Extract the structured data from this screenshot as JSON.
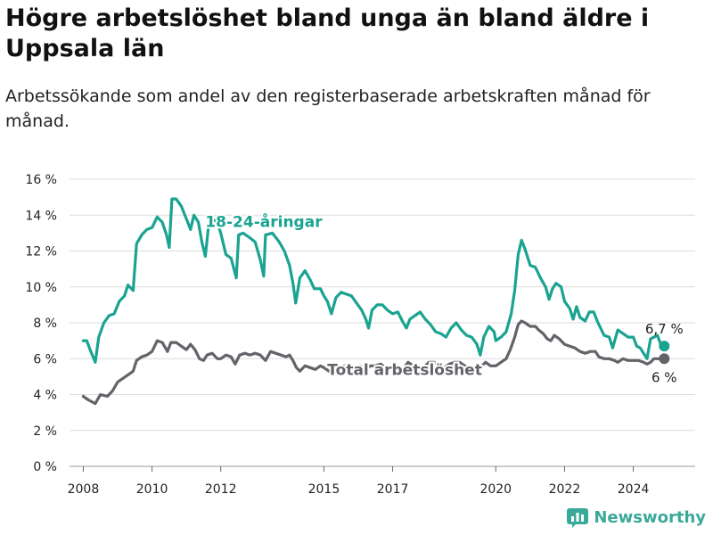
{
  "title": "Högre arbetslöshet bland unga än bland äldre i Uppsala län",
  "subtitle": "Arbetssökande som andel av den registerbaserade arbetskraften månad för månad.",
  "brand": {
    "name": "Newsworthy",
    "color": "#3aa99a"
  },
  "chart_data": {
    "type": "line",
    "title": "Högre arbetslöshet bland unga än bland äldre i Uppsala län",
    "subtitle": "Arbetssökande som andel av den registerbaserade arbetskraften månad för månad.",
    "xlabel": "",
    "ylabel": "",
    "xlim": [
      2007.6,
      2025.8
    ],
    "ylim": [
      0,
      16
    ],
    "grid": true,
    "x_ticks": [
      2008,
      2010,
      2012,
      2015,
      2017,
      2020,
      2022,
      2024
    ],
    "y_ticks": [
      {
        "value": 0,
        "label": "0 %"
      },
      {
        "value": 2,
        "label": "2 %"
      },
      {
        "value": 4,
        "label": "4 %"
      },
      {
        "value": 6,
        "label": "6 %"
      },
      {
        "value": 8,
        "label": "8 %"
      },
      {
        "value": 10,
        "label": "10 %"
      },
      {
        "value": 12,
        "label": "12 %"
      },
      {
        "value": 14,
        "label": "14 %"
      },
      {
        "value": 16,
        "label": "16 %"
      }
    ],
    "series": [
      {
        "name": "18-24-åringar",
        "color": "#1aa391",
        "end_label": "6,7 %",
        "points": [
          [
            2008.0,
            7.0
          ],
          [
            2008.1,
            7.0
          ],
          [
            2008.2,
            6.5
          ],
          [
            2008.35,
            5.8
          ],
          [
            2008.45,
            7.2
          ],
          [
            2008.6,
            8.0
          ],
          [
            2008.75,
            8.4
          ],
          [
            2008.9,
            8.5
          ],
          [
            2009.05,
            9.2
          ],
          [
            2009.2,
            9.5
          ],
          [
            2009.3,
            10.1
          ],
          [
            2009.45,
            9.8
          ],
          [
            2009.55,
            12.4
          ],
          [
            2009.7,
            12.9
          ],
          [
            2009.85,
            13.2
          ],
          [
            2010.0,
            13.3
          ],
          [
            2010.15,
            13.9
          ],
          [
            2010.3,
            13.6
          ],
          [
            2010.42,
            12.9
          ],
          [
            2010.5,
            12.2
          ],
          [
            2010.58,
            14.9
          ],
          [
            2010.7,
            14.9
          ],
          [
            2010.85,
            14.5
          ],
          [
            2011.0,
            13.8
          ],
          [
            2011.12,
            13.2
          ],
          [
            2011.22,
            14.0
          ],
          [
            2011.35,
            13.6
          ],
          [
            2011.45,
            12.5
          ],
          [
            2011.55,
            11.7
          ],
          [
            2011.65,
            13.5
          ],
          [
            2011.75,
            13.8
          ],
          [
            2011.9,
            13.6
          ],
          [
            2012.0,
            13.0
          ],
          [
            2012.15,
            11.8
          ],
          [
            2012.3,
            11.6
          ],
          [
            2012.45,
            10.5
          ],
          [
            2012.52,
            12.9
          ],
          [
            2012.65,
            13.0
          ],
          [
            2012.8,
            12.8
          ],
          [
            2013.0,
            12.5
          ],
          [
            2013.15,
            11.5
          ],
          [
            2013.25,
            10.6
          ],
          [
            2013.3,
            12.9
          ],
          [
            2013.5,
            13.0
          ],
          [
            2013.7,
            12.5
          ],
          [
            2013.85,
            12.0
          ],
          [
            2014.0,
            11.2
          ],
          [
            2014.1,
            10.2
          ],
          [
            2014.18,
            9.1
          ],
          [
            2014.3,
            10.5
          ],
          [
            2014.45,
            10.9
          ],
          [
            2014.6,
            10.4
          ],
          [
            2014.72,
            9.9
          ],
          [
            2014.9,
            9.9
          ],
          [
            2015.0,
            9.5
          ],
          [
            2015.1,
            9.2
          ],
          [
            2015.22,
            8.5
          ],
          [
            2015.35,
            9.4
          ],
          [
            2015.5,
            9.7
          ],
          [
            2015.65,
            9.6
          ],
          [
            2015.8,
            9.5
          ],
          [
            2015.95,
            9.1
          ],
          [
            2016.1,
            8.7
          ],
          [
            2016.22,
            8.2
          ],
          [
            2016.3,
            7.7
          ],
          [
            2016.4,
            8.7
          ],
          [
            2016.55,
            9.0
          ],
          [
            2016.7,
            9.0
          ],
          [
            2016.85,
            8.7
          ],
          [
            2017.0,
            8.5
          ],
          [
            2017.15,
            8.6
          ],
          [
            2017.28,
            8.1
          ],
          [
            2017.4,
            7.7
          ],
          [
            2017.5,
            8.2
          ],
          [
            2017.65,
            8.4
          ],
          [
            2017.8,
            8.6
          ],
          [
            2017.95,
            8.2
          ],
          [
            2018.1,
            7.9
          ],
          [
            2018.25,
            7.5
          ],
          [
            2018.4,
            7.4
          ],
          [
            2018.55,
            7.2
          ],
          [
            2018.7,
            7.7
          ],
          [
            2018.85,
            8.0
          ],
          [
            2019.0,
            7.6
          ],
          [
            2019.15,
            7.3
          ],
          [
            2019.3,
            7.2
          ],
          [
            2019.45,
            6.8
          ],
          [
            2019.55,
            6.2
          ],
          [
            2019.65,
            7.2
          ],
          [
            2019.8,
            7.8
          ],
          [
            2019.95,
            7.5
          ],
          [
            2020.0,
            7.0
          ],
          [
            2020.15,
            7.2
          ],
          [
            2020.3,
            7.5
          ],
          [
            2020.45,
            8.5
          ],
          [
            2020.55,
            9.8
          ],
          [
            2020.65,
            11.8
          ],
          [
            2020.75,
            12.6
          ],
          [
            2020.85,
            12.1
          ],
          [
            2021.0,
            11.2
          ],
          [
            2021.15,
            11.1
          ],
          [
            2021.3,
            10.5
          ],
          [
            2021.45,
            10.0
          ],
          [
            2021.55,
            9.3
          ],
          [
            2021.65,
            9.9
          ],
          [
            2021.75,
            10.2
          ],
          [
            2021.9,
            10.0
          ],
          [
            2022.0,
            9.2
          ],
          [
            2022.15,
            8.8
          ],
          [
            2022.25,
            8.2
          ],
          [
            2022.35,
            8.9
          ],
          [
            2022.45,
            8.3
          ],
          [
            2022.6,
            8.1
          ],
          [
            2022.72,
            8.6
          ],
          [
            2022.85,
            8.6
          ],
          [
            2022.95,
            8.1
          ],
          [
            2023.05,
            7.7
          ],
          [
            2023.15,
            7.3
          ],
          [
            2023.3,
            7.2
          ],
          [
            2023.4,
            6.6
          ],
          [
            2023.55,
            7.6
          ],
          [
            2023.7,
            7.4
          ],
          [
            2023.85,
            7.2
          ],
          [
            2024.0,
            7.2
          ],
          [
            2024.1,
            6.7
          ],
          [
            2024.2,
            6.6
          ],
          [
            2024.3,
            6.3
          ],
          [
            2024.4,
            6.0
          ],
          [
            2024.5,
            7.1
          ],
          [
            2024.6,
            7.2
          ],
          [
            2024.7,
            7.3
          ],
          [
            2024.8,
            6.8
          ],
          [
            2024.9,
            6.7
          ]
        ]
      },
      {
        "name": "Total arbetslöshet",
        "color": "#636369",
        "end_label": "6 %",
        "points": [
          [
            2008.0,
            3.9
          ],
          [
            2008.15,
            3.7
          ],
          [
            2008.35,
            3.5
          ],
          [
            2008.5,
            4.0
          ],
          [
            2008.7,
            3.9
          ],
          [
            2008.85,
            4.2
          ],
          [
            2009.0,
            4.7
          ],
          [
            2009.15,
            4.9
          ],
          [
            2009.3,
            5.1
          ],
          [
            2009.45,
            5.3
          ],
          [
            2009.55,
            5.9
          ],
          [
            2009.7,
            6.1
          ],
          [
            2009.85,
            6.2
          ],
          [
            2010.0,
            6.4
          ],
          [
            2010.15,
            7.0
          ],
          [
            2010.3,
            6.9
          ],
          [
            2010.45,
            6.4
          ],
          [
            2010.55,
            6.9
          ],
          [
            2010.7,
            6.9
          ],
          [
            2010.85,
            6.7
          ],
          [
            2011.0,
            6.5
          ],
          [
            2011.12,
            6.8
          ],
          [
            2011.25,
            6.5
          ],
          [
            2011.38,
            6.0
          ],
          [
            2011.5,
            5.9
          ],
          [
            2011.6,
            6.2
          ],
          [
            2011.75,
            6.3
          ],
          [
            2011.9,
            6.0
          ],
          [
            2012.0,
            6.0
          ],
          [
            2012.15,
            6.2
          ],
          [
            2012.3,
            6.1
          ],
          [
            2012.42,
            5.7
          ],
          [
            2012.55,
            6.2
          ],
          [
            2012.7,
            6.3
          ],
          [
            2012.85,
            6.2
          ],
          [
            2013.0,
            6.3
          ],
          [
            2013.15,
            6.2
          ],
          [
            2013.3,
            5.9
          ],
          [
            2013.45,
            6.4
          ],
          [
            2013.6,
            6.3
          ],
          [
            2013.75,
            6.2
          ],
          [
            2013.9,
            6.1
          ],
          [
            2014.0,
            6.2
          ],
          [
            2014.1,
            5.9
          ],
          [
            2014.2,
            5.5
          ],
          [
            2014.3,
            5.3
          ],
          [
            2014.45,
            5.6
          ],
          [
            2014.6,
            5.5
          ],
          [
            2014.75,
            5.4
          ],
          [
            2014.9,
            5.6
          ],
          [
            2015.0,
            5.5
          ],
          [
            2015.15,
            5.3
          ],
          [
            2015.3,
            5.2
          ],
          [
            2015.45,
            5.5
          ],
          [
            2015.6,
            5.6
          ],
          [
            2015.75,
            5.6
          ],
          [
            2015.9,
            5.5
          ],
          [
            2016.05,
            5.6
          ],
          [
            2016.2,
            5.4
          ],
          [
            2016.35,
            5.6
          ],
          [
            2016.5,
            5.6
          ],
          [
            2016.65,
            5.7
          ],
          [
            2016.8,
            5.5
          ],
          [
            2017.0,
            5.6
          ],
          [
            2017.15,
            5.6
          ],
          [
            2017.3,
            5.4
          ],
          [
            2017.45,
            5.8
          ],
          [
            2017.6,
            5.6
          ],
          [
            2017.75,
            5.6
          ],
          [
            2017.9,
            5.5
          ],
          [
            2018.05,
            5.8
          ],
          [
            2018.2,
            5.8
          ],
          [
            2018.35,
            5.7
          ],
          [
            2018.5,
            5.5
          ],
          [
            2018.65,
            5.7
          ],
          [
            2018.8,
            5.8
          ],
          [
            2018.95,
            5.8
          ],
          [
            2019.1,
            5.6
          ],
          [
            2019.25,
            5.5
          ],
          [
            2019.4,
            5.4
          ],
          [
            2019.55,
            5.5
          ],
          [
            2019.7,
            5.8
          ],
          [
            2019.85,
            5.6
          ],
          [
            2020.0,
            5.6
          ],
          [
            2020.15,
            5.8
          ],
          [
            2020.3,
            6.0
          ],
          [
            2020.42,
            6.5
          ],
          [
            2020.55,
            7.2
          ],
          [
            2020.65,
            7.9
          ],
          [
            2020.75,
            8.1
          ],
          [
            2020.85,
            8.0
          ],
          [
            2021.0,
            7.8
          ],
          [
            2021.15,
            7.8
          ],
          [
            2021.25,
            7.6
          ],
          [
            2021.38,
            7.4
          ],
          [
            2021.5,
            7.1
          ],
          [
            2021.6,
            7.0
          ],
          [
            2021.7,
            7.3
          ],
          [
            2021.85,
            7.1
          ],
          [
            2022.0,
            6.8
          ],
          [
            2022.15,
            6.7
          ],
          [
            2022.3,
            6.6
          ],
          [
            2022.45,
            6.4
          ],
          [
            2022.6,
            6.3
          ],
          [
            2022.75,
            6.4
          ],
          [
            2022.9,
            6.4
          ],
          [
            2023.0,
            6.1
          ],
          [
            2023.15,
            6.0
          ],
          [
            2023.3,
            6.0
          ],
          [
            2023.45,
            5.9
          ],
          [
            2023.55,
            5.8
          ],
          [
            2023.7,
            6.0
          ],
          [
            2023.85,
            5.9
          ],
          [
            2024.0,
            5.9
          ],
          [
            2024.15,
            5.9
          ],
          [
            2024.3,
            5.8
          ],
          [
            2024.4,
            5.7
          ],
          [
            2024.5,
            5.8
          ],
          [
            2024.6,
            6.0
          ],
          [
            2024.75,
            6.0
          ],
          [
            2024.9,
            6.0
          ]
        ]
      }
    ]
  }
}
